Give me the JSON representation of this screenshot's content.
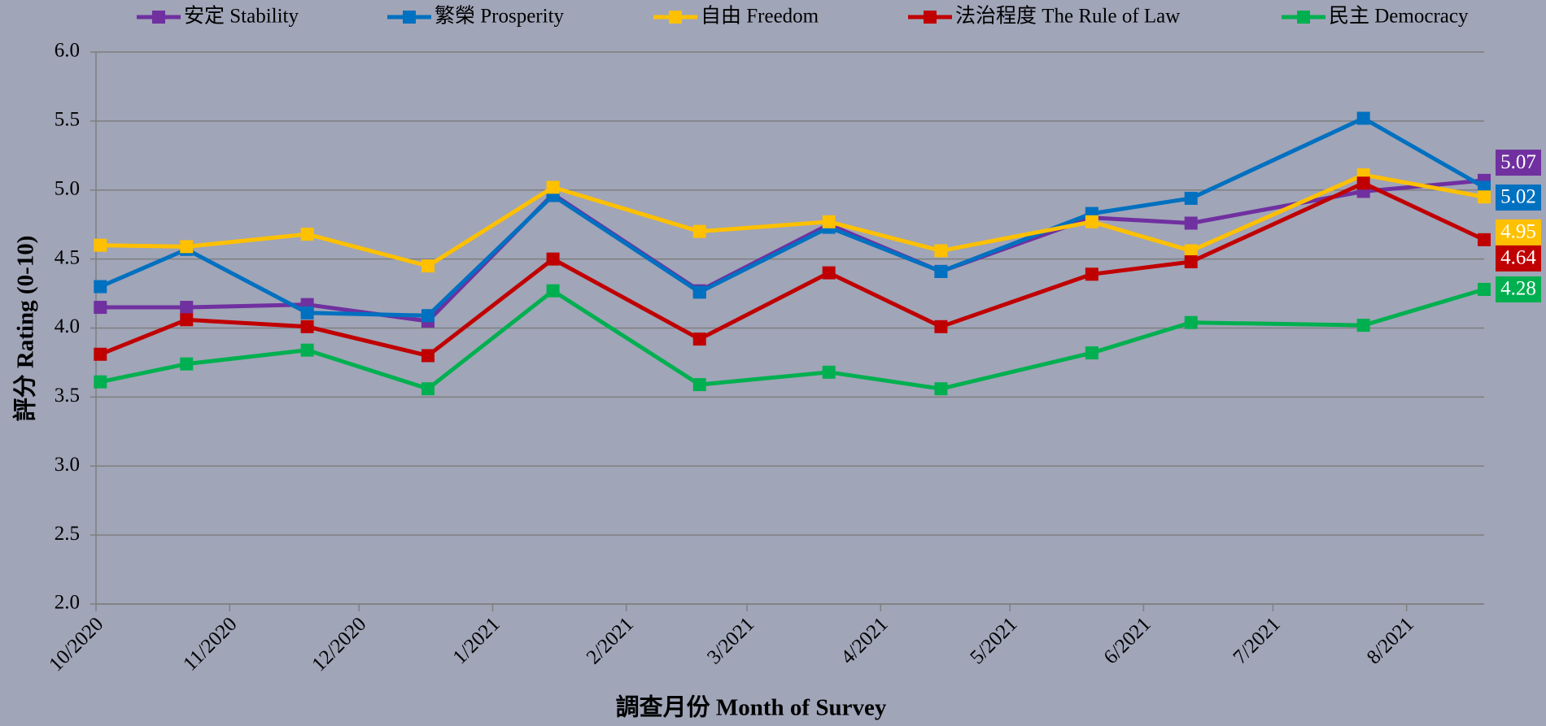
{
  "chart_data": {
    "type": "line",
    "x_label": "調查月份 Month of Survey",
    "y_label": "評分 Rating (0-10)",
    "x": [
      1,
      21,
      49,
      77,
      106,
      140,
      170,
      196,
      231,
      254,
      294,
      322
    ],
    "xlim": [
      0,
      322
    ],
    "xticks": [
      {
        "value": 0,
        "label": "10/2020"
      },
      {
        "value": 31,
        "label": "11/2020"
      },
      {
        "value": 61,
        "label": "12/2020"
      },
      {
        "value": 92,
        "label": "1/2021"
      },
      {
        "value": 123,
        "label": "2/2021"
      },
      {
        "value": 151,
        "label": "3/2021"
      },
      {
        "value": 182,
        "label": "4/2021"
      },
      {
        "value": 212,
        "label": "5/2021"
      },
      {
        "value": 243,
        "label": "6/2021"
      },
      {
        "value": 273,
        "label": "7/2021"
      },
      {
        "value": 304,
        "label": "8/2021"
      }
    ],
    "ylim": [
      2,
      6
    ],
    "yticks": [
      {
        "value": 2,
        "label": "2.0"
      },
      2.5,
      {
        "value": 3,
        "label": "3.0"
      },
      3.5,
      {
        "value": 4,
        "label": "4.0"
      },
      4.5,
      {
        "value": 5,
        "label": "5.0"
      },
      5.5,
      {
        "value": 6,
        "label": "6.0"
      }
    ],
    "grid": true,
    "series": [
      {
        "name": "安定 Stability",
        "color": "#7030a0",
        "values": [
          4.15,
          4.15,
          4.17,
          4.05,
          4.97,
          4.27,
          4.75,
          4.41,
          4.8,
          4.76,
          4.99,
          5.07
        ]
      },
      {
        "name": "繁榮 Prosperity",
        "color": "#0070c0",
        "values": [
          4.3,
          4.57,
          4.11,
          4.09,
          4.96,
          4.26,
          4.73,
          4.41,
          4.83,
          4.94,
          5.52,
          5.02
        ]
      },
      {
        "name": "自由 Freedom",
        "color": "#ffc000",
        "values": [
          4.6,
          4.59,
          4.68,
          4.45,
          5.02,
          4.7,
          4.77,
          4.56,
          4.77,
          4.56,
          5.11,
          4.95
        ]
      },
      {
        "name": "法治程度 The Rule of Law",
        "color": "#c00000",
        "values": [
          3.81,
          4.06,
          4.01,
          3.8,
          4.5,
          3.92,
          4.4,
          4.01,
          4.39,
          4.48,
          5.05,
          4.64
        ]
      },
      {
        "name": "民主 Democracy",
        "color": "#00b050",
        "values": [
          3.61,
          3.74,
          3.84,
          3.56,
          4.27,
          3.59,
          3.68,
          3.56,
          3.82,
          4.04,
          4.02,
          4.28
        ]
      }
    ]
  }
}
